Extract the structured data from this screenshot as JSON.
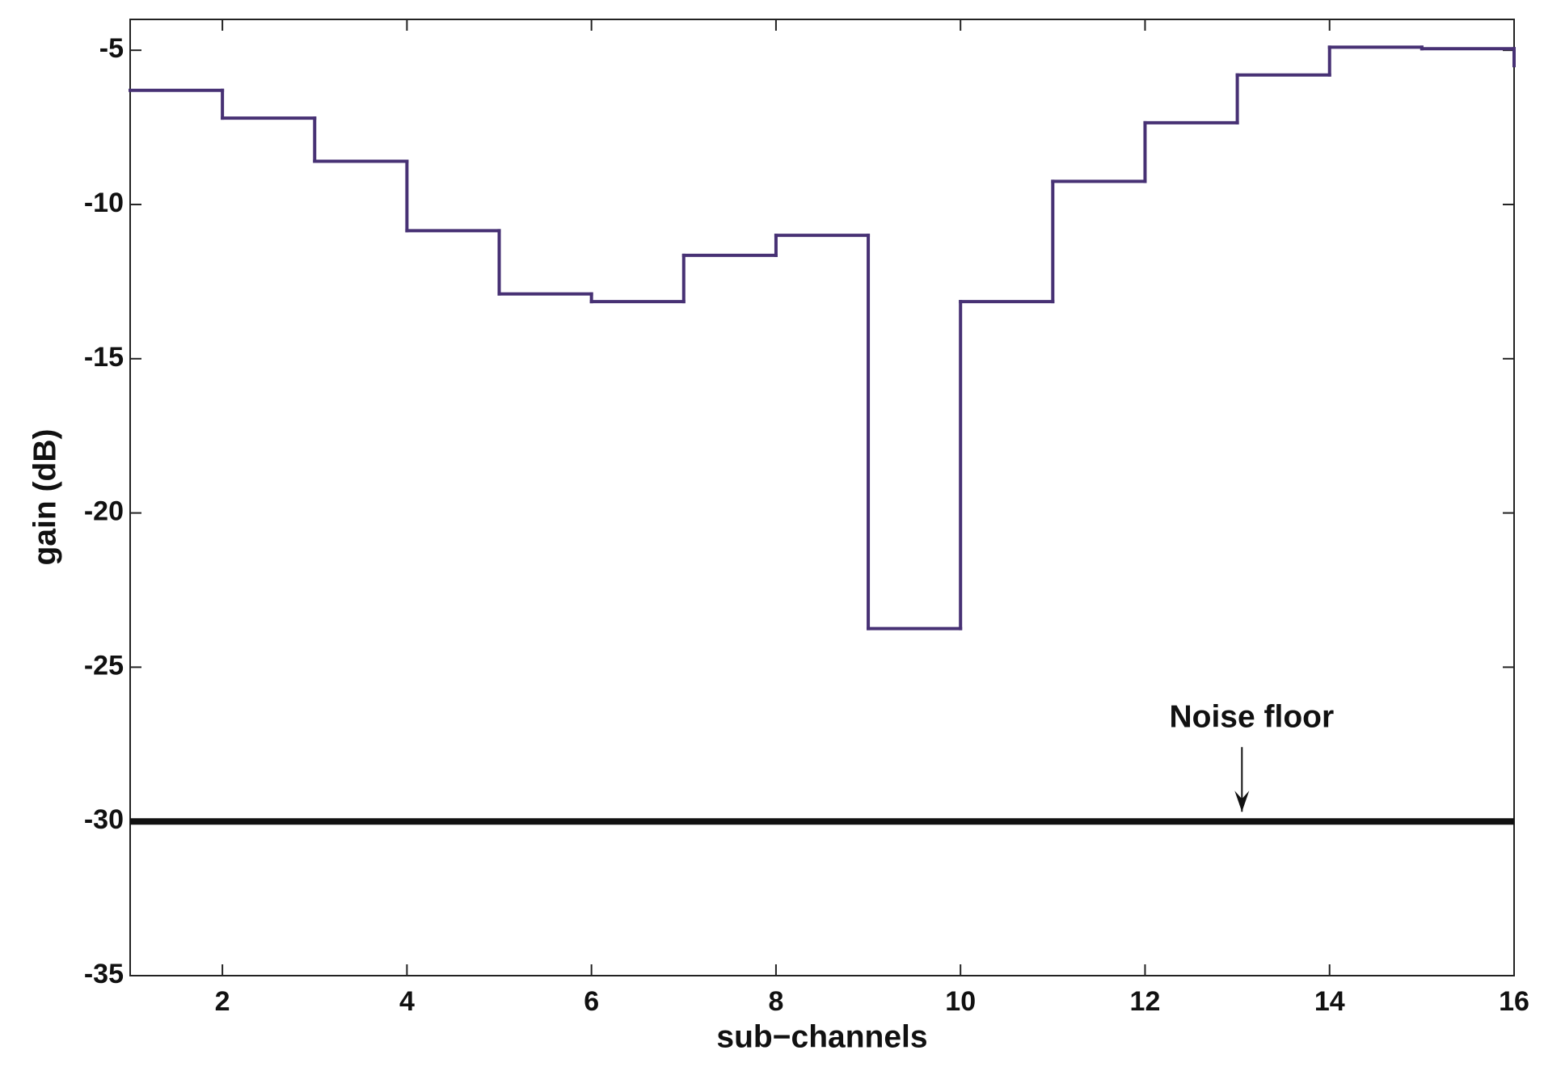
{
  "chart_data": {
    "type": "stairs",
    "xlabel": "sub−channels",
    "ylabel": "gain (dB)",
    "xlim": [
      1,
      16
    ],
    "xticks": [
      2,
      4,
      6,
      8,
      10,
      12,
      14,
      16
    ],
    "ylim": [
      -35,
      -4
    ],
    "yticks": [
      -35,
      -30,
      -25,
      -20,
      -15,
      -10,
      -5
    ],
    "series": [
      {
        "color": "#473174",
        "x": [
          1,
          2,
          3,
          4,
          5,
          6,
          7,
          8,
          9,
          10,
          11,
          12,
          13,
          14,
          15,
          16
        ],
        "values": [
          -6.3,
          -7.2,
          -8.6,
          -10.85,
          -12.9,
          -13.15,
          -11.65,
          -11.0,
          -23.75,
          -13.15,
          -9.25,
          -7.35,
          -5.8,
          -4.9,
          -4.95,
          -5.5
        ]
      },
      {
        "color": "#111111",
        "x": [
          1,
          16
        ],
        "values": [
          -30,
          -30
        ]
      }
    ],
    "annotation": {
      "text": "Noise floor",
      "x": 13.05,
      "y": -30
    }
  }
}
